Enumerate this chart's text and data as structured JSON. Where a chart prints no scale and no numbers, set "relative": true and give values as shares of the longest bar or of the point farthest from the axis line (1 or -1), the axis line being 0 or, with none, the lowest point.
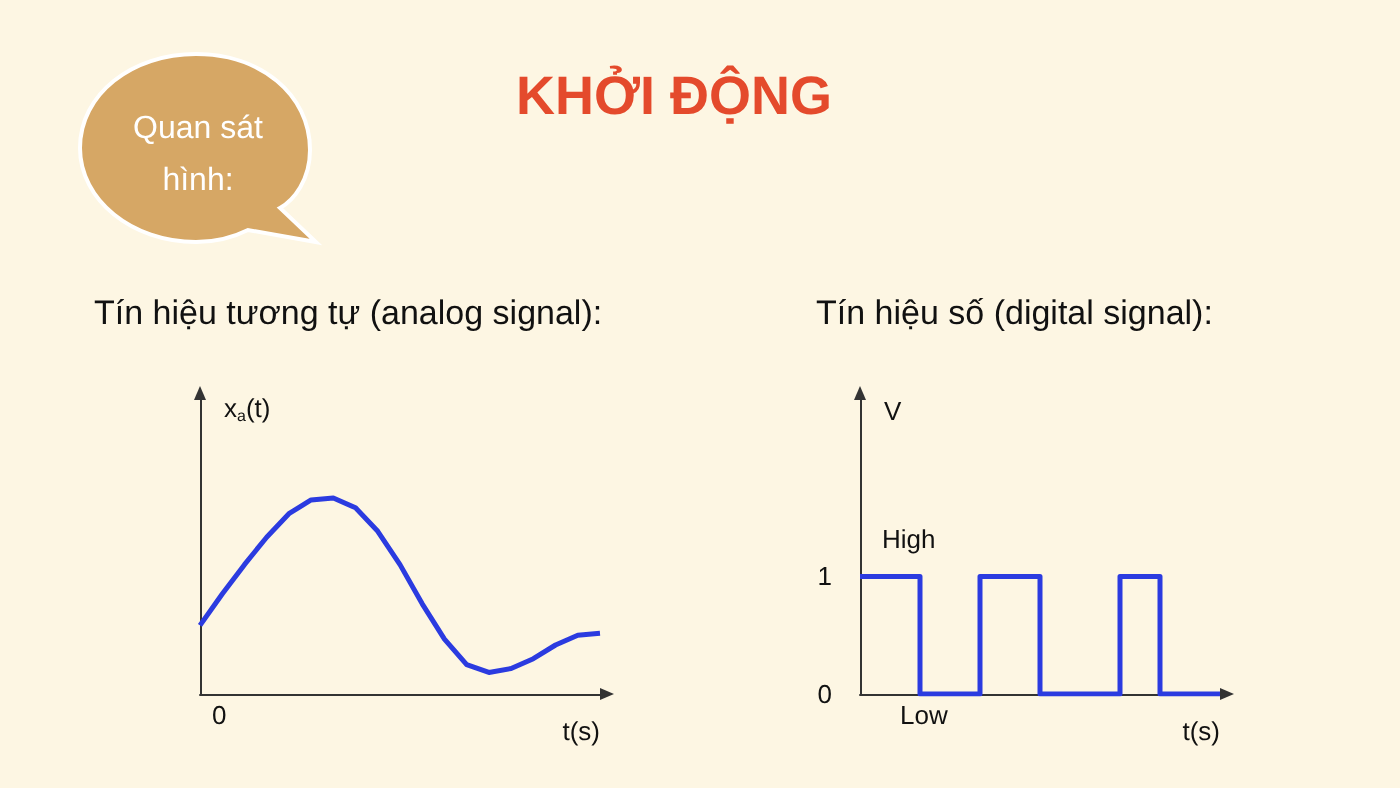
{
  "chart_data": [
    {
      "type": "line",
      "title": "Tín hiệu tương tự (analog signal):",
      "xlabel": "t(s)",
      "ylabel": "x$_{a}$(t)",
      "relative": true,
      "annotations": [
        "Quan sát hình:",
        "KHỞI ĐỘNG",
        "0"
      ],
      "categories": [
        null,
        null,
        null,
        null,
        null,
        null,
        null,
        null,
        null,
        null,
        null,
        null,
        null,
        null,
        null,
        null,
        null,
        null,
        null
      ],
      "series": [
        {
          "color": "#2b3be0",
          "values": [
            0.35,
            0.51,
            0.66,
            0.8,
            0.92,
            0.99,
            1,
            0.95,
            0.83,
            0.66,
            0.46,
            0.28,
            0.15,
            0.11,
            0.13,
            0.18,
            0.25,
            0.3,
            0.31
          ]
        }
      ],
      "grid": false,
      "marker": "none",
      "tick_labels": false
    },
    {
      "type": "step",
      "title": "Tín hiệu số (digital signal):",
      "xlabel": "t(s)",
      "ylabel": "V",
      "annotations": [
        "High",
        "Low"
      ],
      "categories": [
        null,
        null,
        null,
        null,
        null,
        null,
        null,
        null,
        null,
        null,
        null,
        null,
        null,
        null,
        null,
        null,
        null,
        null,
        null
      ],
      "series": [
        {
          "color": "#2b3be0",
          "values": [
            1,
            1,
            1,
            0,
            0,
            0,
            1,
            1,
            1,
            0,
            0,
            0,
            0,
            1,
            1,
            0,
            0,
            0,
            0
          ]
        }
      ],
      "ylim": [
        0,
        2.5
      ],
      "yticks": [
        0,
        1
      ],
      "grid": false,
      "marker": "none",
      "tick_labels": "y"
    }
  ]
}
